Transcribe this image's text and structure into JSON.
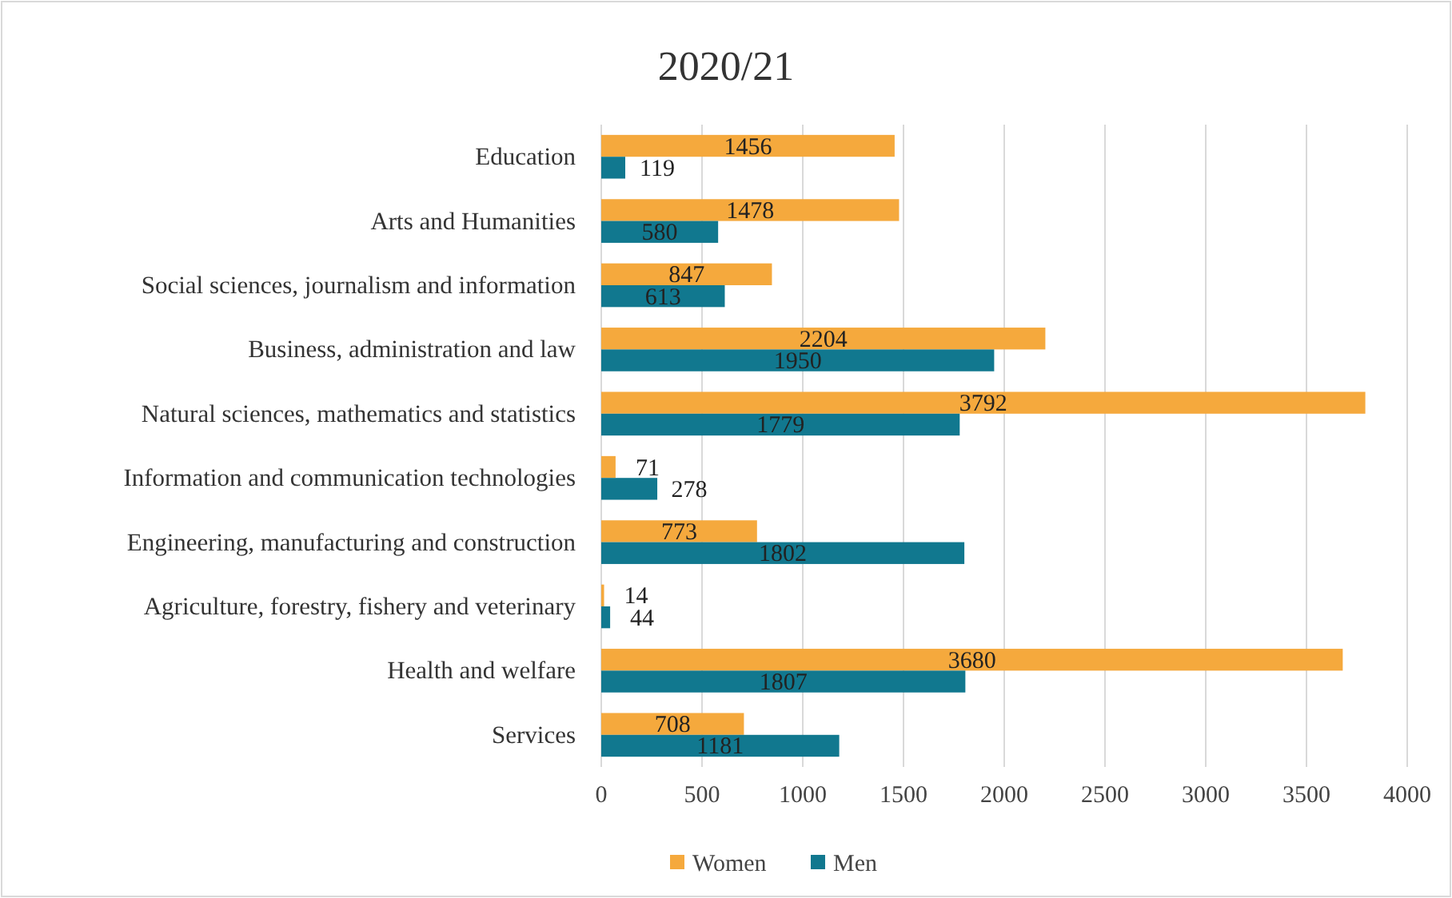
{
  "chart_data": {
    "type": "bar",
    "orientation": "horizontal",
    "title": "2020/21",
    "categories": [
      "Education",
      "Arts and Humanities",
      "Social sciences, journalism and information",
      "Business, administration and law",
      "Natural sciences, mathematics and statistics",
      "Information and communication technologies",
      "Engineering, manufacturing and construction",
      "Agriculture, forestry, fishery and veterinary",
      "Health and welfare",
      "Services"
    ],
    "series": [
      {
        "name": "Women",
        "color": "#f5a93d",
        "values": [
          1456,
          1478,
          847,
          2204,
          3792,
          71,
          773,
          14,
          3680,
          708
        ]
      },
      {
        "name": "Men",
        "color": "#11788f",
        "values": [
          119,
          580,
          613,
          1950,
          1779,
          278,
          1802,
          44,
          1807,
          1181
        ]
      }
    ],
    "xlim": [
      0,
      4000
    ],
    "xticks": [
      0,
      500,
      1000,
      1500,
      2000,
      2500,
      3000,
      3500,
      4000
    ],
    "grid": "x",
    "legend": "bottom",
    "data_labels": true
  }
}
